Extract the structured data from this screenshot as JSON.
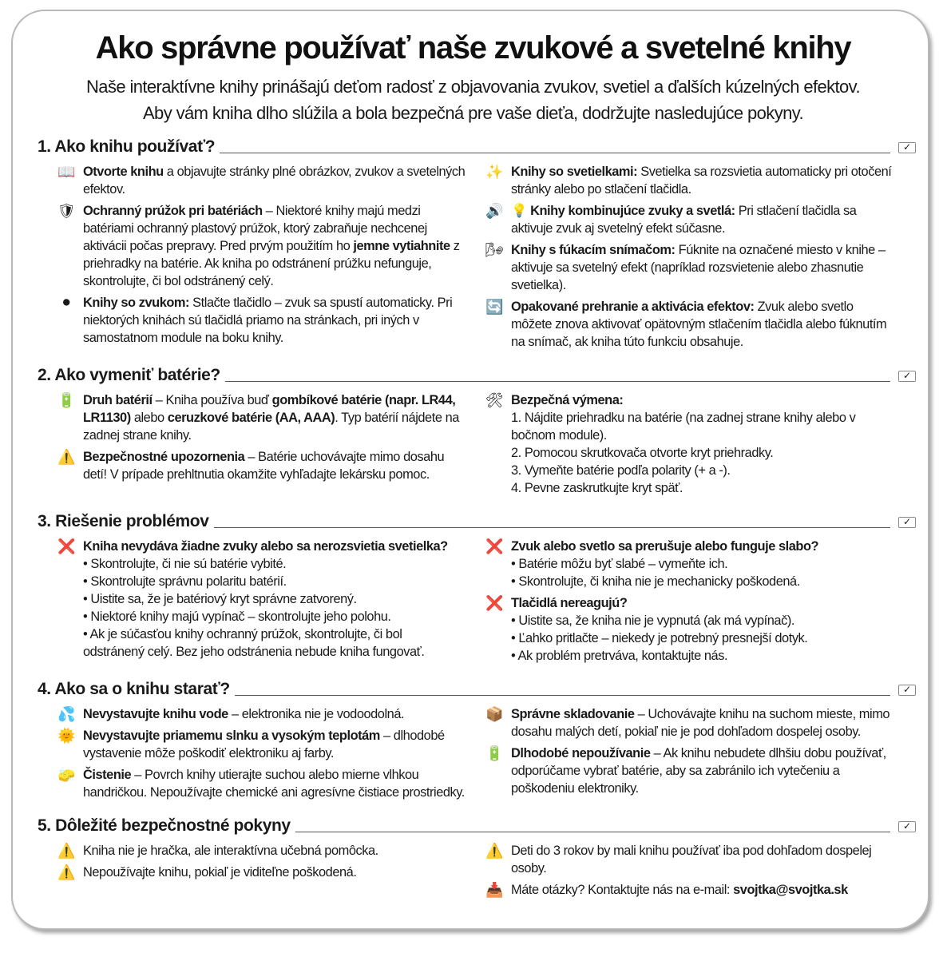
{
  "title": "Ako správne používať naše zvukové a svetelné knihy",
  "subtitle": [
    "Naše interaktívne knihy prinášajú deťom radosť z objavovania zvukov, svetiel a ďalších kúzelných efektov.",
    "Aby vám kniha dlho slúžila a bola bezpečná pre vaše dieťa, dodržujte nasledujúce pokyny."
  ],
  "sections": [
    {
      "title": "1. Ako knihu používať?",
      "left": [
        {
          "icon": "book-icon",
          "glyph": "📖",
          "parts": [
            {
              "b": "Otvorte knihu"
            },
            {
              "t": " a objavujte stránky plné obrázkov, zvukov a svetelných efektov."
            }
          ]
        },
        {
          "icon": "shield-icon",
          "glyph": "🛡",
          "parts": [
            {
              "b": "Ochranný prúžok pri batériách"
            },
            {
              "t": " – Niektoré knihy majú medzi batériami ochranný plastový prúžok, ktorý zabraňuje nechcenej aktivácii počas prepravy. Pred prvým použitím ho "
            },
            {
              "b": "jemne vytiahnite"
            },
            {
              "t": " z priehradky na batérie. Ak kniha po odstránení prúžku nefunguje, skontrolujte, či bol odstránený celý."
            }
          ]
        },
        {
          "icon": "button-icon",
          "glyph": "⚫",
          "parts": [
            {
              "b": "Knihy so zvukom:"
            },
            {
              "t": " Stlačte tlačidlo – zvuk sa spustí automaticky. Pri niektorých knihách sú tlačidlá priamo na stránkach, pri iných v samostatnom module na boku knihy."
            }
          ]
        }
      ],
      "right": [
        {
          "icon": "sparkles-icon",
          "glyph": "✨",
          "parts": [
            {
              "b": "Knihy so svetielkami:"
            },
            {
              "t": " Svetielka sa rozsvietia automaticky pri otočení stránky alebo po stlačení tlačidla."
            }
          ]
        },
        {
          "icon": "speaker-bulb-icon",
          "glyph": "🔊",
          "parts": [
            {
              "t": "💡 "
            },
            {
              "b": "Knihy kombinujúce zvuky a svetlá:"
            },
            {
              "t": " Pri stlačení tlačidla sa aktivuje zvuk aj svetelný efekt súčasne."
            }
          ]
        },
        {
          "icon": "blowing-face-icon",
          "glyph": "🌬",
          "parts": [
            {
              "b": "Knihy s fúkacím snímačom:"
            },
            {
              "t": " Fúknite na označené miesto v knihe – aktivuje sa svetelný efekt (napríklad rozsvietenie alebo zhasnutie svetielka)."
            }
          ]
        },
        {
          "icon": "repeat-icon",
          "glyph": "🔄",
          "parts": [
            {
              "b": "Opakované prehranie a aktivácia efektov:"
            },
            {
              "t": " Zvuk alebo svetlo môžete znova aktivovať opätovným stlačením tlačidla alebo fúknutím na snímač, ak kniha túto funkciu obsahuje."
            }
          ]
        }
      ]
    },
    {
      "title": "2. Ako vymeniť batérie?",
      "left": [
        {
          "icon": "battery-icon",
          "glyph": "🔋",
          "parts": [
            {
              "b": "Druh batérií"
            },
            {
              "t": " – Kniha používa buď "
            },
            {
              "b": "gombíkové batérie (napr. LR44, LR1130)"
            },
            {
              "t": " alebo "
            },
            {
              "b": "ceruzkové batérie (AA, AAA)"
            },
            {
              "t": ". Typ batérií nájdete na zadnej strane knihy."
            }
          ]
        },
        {
          "icon": "warning-icon",
          "glyph": "⚠️",
          "parts": [
            {
              "b": "Bezpečnostné upozornenia"
            },
            {
              "t": " – Batérie uchovávajte mimo dosahu detí! V prípade prehltnutia okamžite vyhľadajte lekársku pomoc."
            }
          ]
        }
      ],
      "right": [
        {
          "icon": "tools-icon",
          "glyph": "🛠",
          "parts": [
            {
              "b": "Bezpečná výmena:"
            }
          ],
          "list": [
            "1. Nájdite priehradku na batérie (na zadnej strane knihy alebo v bočnom module).",
            "2. Pomocou skrutkovača otvorte kryt priehradky.",
            "3. Vymeňte batérie podľa polarity (+ a -).",
            "4. Pevne zaskrutkujte kryt späť."
          ]
        }
      ]
    },
    {
      "title": "3. Riešenie problémov",
      "left": [
        {
          "icon": "cross-icon",
          "glyph": "❌",
          "parts": [
            {
              "b": "Kniha nevydáva žiadne zvuky alebo sa nerozsvietia svetielka?"
            }
          ],
          "list": [
            "• Skontrolujte, či nie sú batérie vybité.",
            "• Skontrolujte správnu polaritu batérií.",
            "• Uistite sa, že je batériový kryt správne zatvorený.",
            "• Niektoré knihy majú vypínač – skontrolujte jeho polohu.",
            "• Ak je súčasťou knihy ochranný prúžok, skontrolujte, či bol odstránený celý. Bez jeho odstránenia nebude kniha fungovať."
          ]
        }
      ],
      "right": [
        {
          "icon": "cross-icon",
          "glyph": "❌",
          "parts": [
            {
              "b": "Zvuk alebo svetlo sa prerušuje alebo funguje slabo?"
            }
          ],
          "list": [
            "• Batérie môžu byť slabé – vymeňte ich.",
            "• Skontrolujte, či kniha nie je mechanicky poškodená."
          ]
        },
        {
          "icon": "cross-icon",
          "glyph": "❌",
          "parts": [
            {
              "b": "Tlačidlá nereagujú?"
            }
          ],
          "list": [
            "• Uistite sa, že kniha nie je vypnutá (ak má vypínač).",
            "• Ľahko pritlačte – niekedy je potrebný presnejší dotyk.",
            "• Ak problém pretrváva, kontaktujte nás."
          ]
        }
      ]
    },
    {
      "title": "4. Ako sa o knihu starať?",
      "left": [
        {
          "icon": "water-drops-icon",
          "glyph": "💦",
          "parts": [
            {
              "b": "Nevystavujte knihu vode"
            },
            {
              "t": " – elektronika nie je vodoodolná."
            }
          ]
        },
        {
          "icon": "sun-icon",
          "glyph": "🌞",
          "parts": [
            {
              "b": "Nevystavujte priamemu slnku a vysokým teplotám"
            },
            {
              "t": " – dlhodobé vystavenie môže poškodiť elektroniku aj farby."
            }
          ]
        },
        {
          "icon": "sponge-icon",
          "glyph": "🧽",
          "parts": [
            {
              "b": "Čistenie"
            },
            {
              "t": " – Povrch knihy utierajte suchou alebo mierne vlhkou handričkou. Nepoužívajte chemické ani agresívne čistiace prostriedky."
            }
          ]
        }
      ],
      "right": [
        {
          "icon": "box-icon",
          "glyph": "📦",
          "parts": [
            {
              "b": "Správne skladovanie"
            },
            {
              "t": " – Uchovávajte knihu na suchom mieste, mimo dosahu malých detí, pokiaľ nie je pod dohľadom dospelej osoby."
            }
          ]
        },
        {
          "icon": "battery-icon",
          "glyph": "🔋",
          "parts": [
            {
              "b": "Dlhodobé nepoužívanie"
            },
            {
              "t": " – Ak knihu nebudete dlhšiu dobu používať, odporúčame vybrať batérie, aby sa zabránilo ich vytečeniu a poškodeniu elektroniky."
            }
          ]
        }
      ]
    },
    {
      "title": "5. Dôležité bezpečnostné pokyny",
      "left": [
        {
          "icon": "warning-icon",
          "glyph": "⚠️",
          "parts": [
            {
              "t": "Kniha nie je hračka, ale interaktívna učebná pomôcka."
            }
          ]
        },
        {
          "icon": "warning-icon",
          "glyph": "⚠️",
          "parts": [
            {
              "t": "Nepoužívajte knihu, pokiaľ je viditeľne poškodená."
            }
          ]
        }
      ],
      "right": [
        {
          "icon": "warning-icon",
          "glyph": "⚠️",
          "parts": [
            {
              "t": "Deti do 3 rokov by mali knihu používať iba pod dohľadom dospelej osoby."
            }
          ]
        },
        {
          "icon": "inbox-icon",
          "glyph": "📥",
          "parts": [
            {
              "t": "Máte otázky? Kontaktujte nás na e-mail: "
            },
            {
              "b": "svojtka@svojtka.sk"
            }
          ]
        }
      ]
    }
  ]
}
